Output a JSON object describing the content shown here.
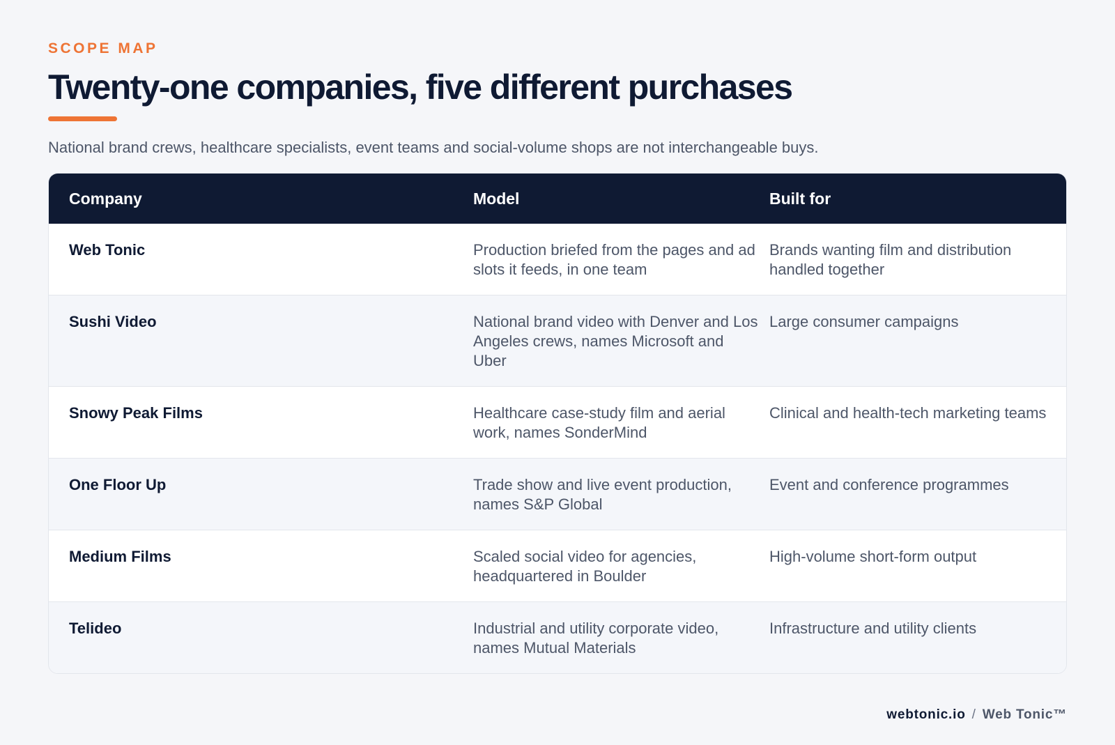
{
  "header": {
    "eyebrow": "SCOPE MAP",
    "title": "Twenty-one companies, five different purchases",
    "subtitle": "National brand crews, healthcare specialists, event teams and social-volume shops are not interchangeable buys."
  },
  "table": {
    "columns": [
      "Company",
      "Model",
      "Built for"
    ],
    "rows": [
      {
        "company": "Web Tonic",
        "model": "Production briefed from the pages and ad slots it feeds, in one team",
        "built_for": "Brands wanting film and distribution handled together"
      },
      {
        "company": "Sushi Video",
        "model": "National brand video with Denver and Los Angeles crews, names Microsoft and Uber",
        "built_for": "Large consumer campaigns"
      },
      {
        "company": "Snowy Peak Films",
        "model": "Healthcare case-study film and aerial work, names SonderMind",
        "built_for": "Clinical and health-tech marketing teams"
      },
      {
        "company": "One Floor Up",
        "model": "Trade show and live event production, names S&P Global",
        "built_for": "Event and conference programmes"
      },
      {
        "company": "Medium Films",
        "model": "Scaled social video for agencies, headquartered in Boulder",
        "built_for": "High-volume short-form output"
      },
      {
        "company": "Telideo",
        "model": "Industrial and utility corporate video, names Mutual Materials",
        "built_for": "Infrastructure and utility clients"
      }
    ]
  },
  "footer": {
    "site": "webtonic.io",
    "separator": "/",
    "brand": "Web Tonic™"
  },
  "colors": {
    "accent": "#ee7435",
    "navy": "#0f1a33",
    "background": "#f5f6f9"
  }
}
